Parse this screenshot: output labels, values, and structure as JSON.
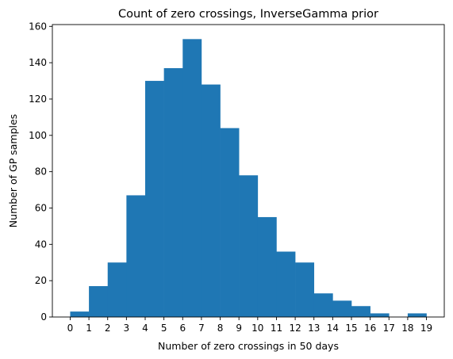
{
  "chart_data": {
    "type": "bar",
    "title": "Count of zero crossings, InverseGamma prior",
    "xlabel": "Number of zero crossings in 50 days",
    "ylabel": "Number of GP samples",
    "bin_edges": [
      0,
      1,
      2,
      3,
      4,
      5,
      6,
      7,
      8,
      9,
      10,
      11,
      12,
      13,
      14,
      15,
      16,
      17,
      18,
      19
    ],
    "values": [
      3,
      17,
      30,
      67,
      130,
      137,
      153,
      128,
      104,
      78,
      55,
      36,
      30,
      13,
      9,
      6,
      2,
      0,
      2
    ],
    "xticks": [
      "0",
      "1",
      "2",
      "3",
      "4",
      "5",
      "6",
      "7",
      "8",
      "9",
      "10",
      "11",
      "12",
      "13",
      "14",
      "15",
      "16",
      "17",
      "18",
      "19"
    ],
    "yticks": [
      "0",
      "20",
      "40",
      "60",
      "80",
      "100",
      "120",
      "140",
      "160"
    ],
    "xlim": [
      -0.95,
      19.95
    ],
    "ylim": [
      0,
      161
    ],
    "grid": false,
    "colors": {
      "bar": "#1f77b4"
    }
  }
}
